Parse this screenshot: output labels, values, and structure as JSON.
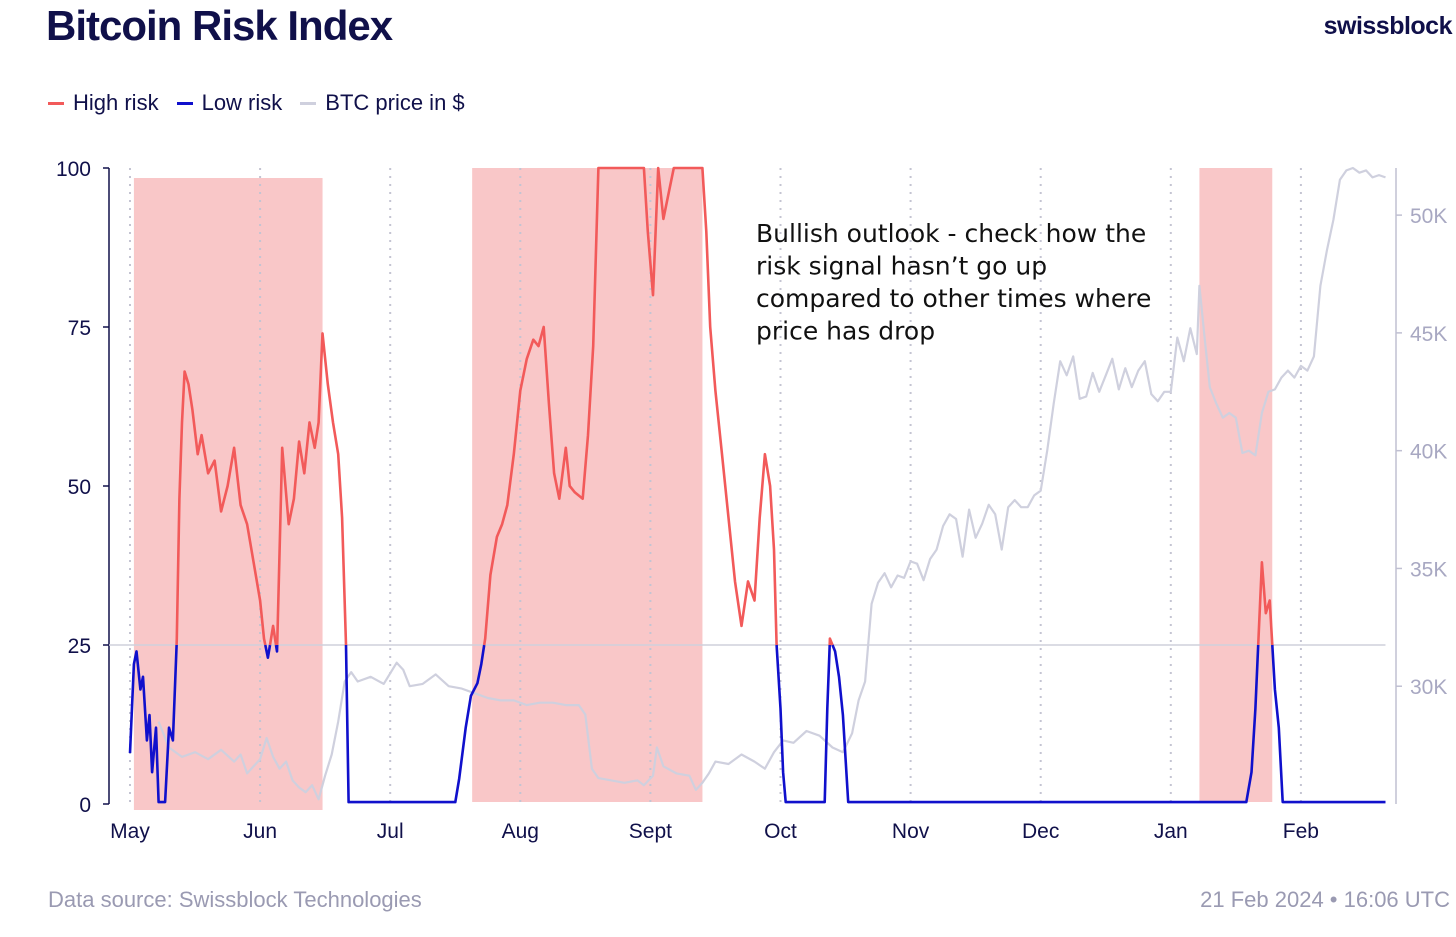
{
  "header": {
    "title": "Bitcoin Risk Index",
    "brand": "swissblock"
  },
  "footer": {
    "source": "Data source: Swissblock Technologies",
    "timestamp": "21 Feb 2024 • 16:06 UTC"
  },
  "colors": {
    "high_risk": "#f25a5a",
    "low_risk": "#1010cc",
    "btc_price": "#cfd0de",
    "shade": "#f9c7c8",
    "axis_text": "#10104a",
    "right_axis_text": "#a8a8c2"
  },
  "chart_data": {
    "type": "line",
    "title": "Bitcoin Risk Index",
    "legend": [
      {
        "name": "High risk",
        "color": "#f25a5a"
      },
      {
        "name": "Low risk",
        "color": "#1010cc"
      },
      {
        "name": "BTC price in $",
        "color": "#cfd0de"
      }
    ],
    "legend_position": "top-left",
    "x_tick_labels": [
      "May",
      "Jun",
      "Jul",
      "Aug",
      "Sept",
      "Oct",
      "Nov",
      "Dec",
      "Jan",
      "Feb"
    ],
    "x_range_months": [
      0,
      9.65
    ],
    "y_left": {
      "ticks": [
        0,
        25,
        50,
        75,
        100
      ],
      "range": [
        0,
        100
      ]
    },
    "y_right": {
      "ticks": [
        30000,
        35000,
        40000,
        45000,
        50000
      ],
      "tick_labels": [
        "30K",
        "35K",
        "40K",
        "45K",
        "50K"
      ],
      "range": [
        25000,
        52000
      ]
    },
    "threshold": 25,
    "high_risk_periods": [
      {
        "start": 0.03,
        "end": 1.48
      },
      {
        "start": 2.63,
        "end": 4.4
      },
      {
        "start": 8.22,
        "end": 8.78
      }
    ],
    "annotation": "Bullish outlook - check how the risk signal hasn’t go up compared to other times where price has drop",
    "risk_series": [
      [
        0,
        8
      ],
      [
        0.03,
        22
      ],
      [
        0.05,
        24
      ],
      [
        0.08,
        18
      ],
      [
        0.1,
        20
      ],
      [
        0.13,
        10
      ],
      [
        0.15,
        14
      ],
      [
        0.17,
        5
      ],
      [
        0.2,
        12
      ],
      [
        0.22,
        0.3
      ],
      [
        0.27,
        0.3
      ],
      [
        0.3,
        12
      ],
      [
        0.33,
        10
      ],
      [
        0.36,
        26
      ],
      [
        0.38,
        48
      ],
      [
        0.4,
        60
      ],
      [
        0.42,
        68
      ],
      [
        0.45,
        66
      ],
      [
        0.48,
        62
      ],
      [
        0.52,
        55
      ],
      [
        0.55,
        58
      ],
      [
        0.6,
        52
      ],
      [
        0.65,
        54
      ],
      [
        0.7,
        46
      ],
      [
        0.75,
        50
      ],
      [
        0.8,
        56
      ],
      [
        0.85,
        47
      ],
      [
        0.9,
        44
      ],
      [
        0.95,
        38
      ],
      [
        1.0,
        32
      ],
      [
        1.03,
        26
      ],
      [
        1.06,
        23
      ],
      [
        1.1,
        28
      ],
      [
        1.13,
        24
      ],
      [
        1.17,
        56
      ],
      [
        1.22,
        44
      ],
      [
        1.26,
        48
      ],
      [
        1.3,
        57
      ],
      [
        1.34,
        52
      ],
      [
        1.38,
        60
      ],
      [
        1.42,
        56
      ],
      [
        1.45,
        60
      ],
      [
        1.48,
        74
      ],
      [
        1.52,
        66
      ],
      [
        1.56,
        60
      ],
      [
        1.6,
        55
      ],
      [
        1.63,
        45
      ],
      [
        1.66,
        25
      ],
      [
        1.68,
        0.3
      ],
      [
        2.5,
        0.3
      ],
      [
        2.53,
        4
      ],
      [
        2.58,
        12
      ],
      [
        2.62,
        17
      ],
      [
        2.67,
        19
      ],
      [
        2.7,
        22
      ],
      [
        2.73,
        26
      ],
      [
        2.77,
        36
      ],
      [
        2.82,
        42
      ],
      [
        2.86,
        44
      ],
      [
        2.9,
        47
      ],
      [
        2.95,
        55
      ],
      [
        3.0,
        65
      ],
      [
        3.05,
        70
      ],
      [
        3.1,
        73
      ],
      [
        3.14,
        72
      ],
      [
        3.18,
        75
      ],
      [
        3.22,
        63
      ],
      [
        3.26,
        52
      ],
      [
        3.3,
        48
      ],
      [
        3.35,
        56
      ],
      [
        3.38,
        50
      ],
      [
        3.42,
        49
      ],
      [
        3.48,
        48
      ],
      [
        3.52,
        58
      ],
      [
        3.56,
        72
      ],
      [
        3.6,
        100
      ],
      [
        3.95,
        100
      ],
      [
        3.98,
        90
      ],
      [
        4.02,
        80
      ],
      [
        4.06,
        100
      ],
      [
        4.1,
        92
      ],
      [
        4.14,
        96
      ],
      [
        4.18,
        100
      ],
      [
        4.4,
        100
      ],
      [
        4.43,
        90
      ],
      [
        4.46,
        75
      ],
      [
        4.5,
        65
      ],
      [
        4.55,
        55
      ],
      [
        4.6,
        45
      ],
      [
        4.65,
        35
      ],
      [
        4.7,
        28
      ],
      [
        4.75,
        35
      ],
      [
        4.8,
        32
      ],
      [
        4.84,
        45
      ],
      [
        4.88,
        55
      ],
      [
        4.92,
        50
      ],
      [
        4.95,
        40
      ],
      [
        4.97,
        25
      ],
      [
        5.0,
        15
      ],
      [
        5.02,
        5
      ],
      [
        5.04,
        0.3
      ],
      [
        5.34,
        0.3
      ],
      [
        5.36,
        15
      ],
      [
        5.38,
        26
      ],
      [
        5.42,
        24
      ],
      [
        5.45,
        20
      ],
      [
        5.48,
        14
      ],
      [
        5.52,
        0.3
      ],
      [
        8.58,
        0.3
      ],
      [
        8.62,
        5
      ],
      [
        8.65,
        15
      ],
      [
        8.7,
        38
      ],
      [
        8.73,
        30
      ],
      [
        8.76,
        32
      ],
      [
        8.78,
        25
      ],
      [
        8.8,
        18
      ],
      [
        8.83,
        12
      ],
      [
        8.86,
        0.3
      ],
      [
        9.65,
        0.3
      ]
    ],
    "btc_price_series": [
      [
        0.22,
        28500
      ],
      [
        0.3,
        27400
      ],
      [
        0.4,
        27000
      ],
      [
        0.5,
        27200
      ],
      [
        0.6,
        26900
      ],
      [
        0.7,
        27300
      ],
      [
        0.8,
        26800
      ],
      [
        0.85,
        27100
      ],
      [
        0.9,
        26300
      ],
      [
        0.95,
        26600
      ],
      [
        1.0,
        26900
      ],
      [
        1.05,
        27800
      ],
      [
        1.1,
        27000
      ],
      [
        1.15,
        26500
      ],
      [
        1.2,
        26800
      ],
      [
        1.25,
        26000
      ],
      [
        1.3,
        25700
      ],
      [
        1.35,
        25500
      ],
      [
        1.4,
        25800
      ],
      [
        1.45,
        25200
      ],
      [
        1.5,
        26200
      ],
      [
        1.55,
        27100
      ],
      [
        1.6,
        28500
      ],
      [
        1.65,
        30200
      ],
      [
        1.7,
        30600
      ],
      [
        1.75,
        30200
      ],
      [
        1.85,
        30400
      ],
      [
        1.95,
        30100
      ],
      [
        2.05,
        31000
      ],
      [
        2.1,
        30700
      ],
      [
        2.15,
        30000
      ],
      [
        2.25,
        30100
      ],
      [
        2.35,
        30500
      ],
      [
        2.45,
        30000
      ],
      [
        2.55,
        29900
      ],
      [
        2.65,
        29700
      ],
      [
        2.75,
        29500
      ],
      [
        2.85,
        29400
      ],
      [
        2.95,
        29400
      ],
      [
        3.05,
        29200
      ],
      [
        3.15,
        29300
      ],
      [
        3.25,
        29300
      ],
      [
        3.35,
        29200
      ],
      [
        3.45,
        29200
      ],
      [
        3.5,
        28800
      ],
      [
        3.55,
        26500
      ],
      [
        3.6,
        26100
      ],
      [
        3.7,
        26000
      ],
      [
        3.8,
        25900
      ],
      [
        3.9,
        26000
      ],
      [
        3.95,
        25800
      ],
      [
        4.02,
        26200
      ],
      [
        4.05,
        27400
      ],
      [
        4.1,
        26600
      ],
      [
        4.2,
        26300
      ],
      [
        4.3,
        26200
      ],
      [
        4.35,
        25600
      ],
      [
        4.4,
        25900
      ],
      [
        4.45,
        26300
      ],
      [
        4.5,
        26800
      ],
      [
        4.6,
        26700
      ],
      [
        4.7,
        27100
      ],
      [
        4.8,
        26800
      ],
      [
        4.88,
        26500
      ],
      [
        4.95,
        27200
      ],
      [
        5.02,
        27700
      ],
      [
        5.1,
        27600
      ],
      [
        5.2,
        28100
      ],
      [
        5.3,
        27900
      ],
      [
        5.4,
        27400
      ],
      [
        5.48,
        27200
      ],
      [
        5.55,
        28000
      ],
      [
        5.6,
        29400
      ],
      [
        5.65,
        30200
      ],
      [
        5.7,
        33500
      ],
      [
        5.75,
        34400
      ],
      [
        5.8,
        34800
      ],
      [
        5.85,
        34200
      ],
      [
        5.9,
        34700
      ],
      [
        5.95,
        34600
      ],
      [
        6.0,
        35300
      ],
      [
        6.05,
        35200
      ],
      [
        6.1,
        34500
      ],
      [
        6.15,
        35400
      ],
      [
        6.2,
        35800
      ],
      [
        6.25,
        36800
      ],
      [
        6.3,
        37300
      ],
      [
        6.35,
        37100
      ],
      [
        6.4,
        35500
      ],
      [
        6.45,
        37500
      ],
      [
        6.5,
        36300
      ],
      [
        6.55,
        36900
      ],
      [
        6.6,
        37700
      ],
      [
        6.65,
        37300
      ],
      [
        6.7,
        35800
      ],
      [
        6.75,
        37600
      ],
      [
        6.8,
        37900
      ],
      [
        6.85,
        37600
      ],
      [
        6.9,
        37600
      ],
      [
        6.95,
        38100
      ],
      [
        7.0,
        38300
      ],
      [
        7.05,
        40000
      ],
      [
        7.1,
        42000
      ],
      [
        7.15,
        43800
      ],
      [
        7.2,
        43200
      ],
      [
        7.25,
        44000
      ],
      [
        7.3,
        42200
      ],
      [
        7.35,
        42300
      ],
      [
        7.4,
        43300
      ],
      [
        7.45,
        42500
      ],
      [
        7.5,
        43200
      ],
      [
        7.55,
        43900
      ],
      [
        7.6,
        42600
      ],
      [
        7.65,
        43500
      ],
      [
        7.7,
        42700
      ],
      [
        7.75,
        43400
      ],
      [
        7.8,
        43800
      ],
      [
        7.85,
        42400
      ],
      [
        7.9,
        42100
      ],
      [
        7.95,
        42500
      ],
      [
        8.0,
        42500
      ],
      [
        8.05,
        44800
      ],
      [
        8.1,
        43800
      ],
      [
        8.15,
        45200
      ],
      [
        8.2,
        44100
      ],
      [
        8.22,
        47000
      ],
      [
        8.26,
        44800
      ],
      [
        8.3,
        42700
      ],
      [
        8.35,
        42000
      ],
      [
        8.4,
        41400
      ],
      [
        8.45,
        41600
      ],
      [
        8.5,
        41400
      ],
      [
        8.55,
        39900
      ],
      [
        8.6,
        40000
      ],
      [
        8.65,
        39800
      ],
      [
        8.7,
        41600
      ],
      [
        8.75,
        42500
      ],
      [
        8.8,
        42600
      ],
      [
        8.85,
        43100
      ],
      [
        8.9,
        43400
      ],
      [
        8.95,
        43100
      ],
      [
        9.0,
        43600
      ],
      [
        9.05,
        43400
      ],
      [
        9.1,
        44000
      ],
      [
        9.15,
        47000
      ],
      [
        9.2,
        48500
      ],
      [
        9.25,
        49800
      ],
      [
        9.3,
        51500
      ],
      [
        9.35,
        51900
      ],
      [
        9.4,
        52000
      ],
      [
        9.45,
        51800
      ],
      [
        9.5,
        51900
      ],
      [
        9.55,
        51600
      ],
      [
        9.6,
        51700
      ],
      [
        9.65,
        51600
      ]
    ]
  }
}
